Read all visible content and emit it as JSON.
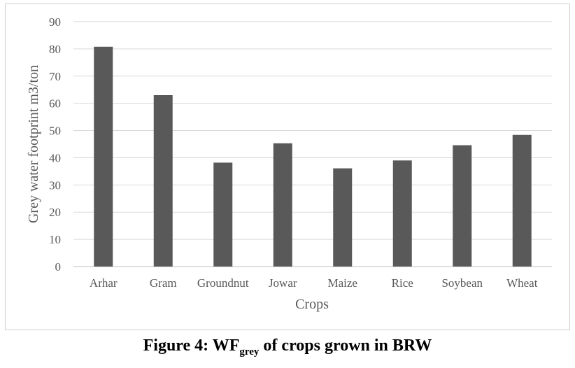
{
  "chart_data": {
    "type": "bar",
    "categories": [
      "Arhar",
      "Gram",
      "Groundnut",
      "Jowar",
      "Maize",
      "Rice",
      "Soybean",
      "Wheat"
    ],
    "values": [
      80.8,
      63.0,
      38.2,
      45.3,
      36.1,
      39.0,
      44.6,
      48.4
    ],
    "title": "",
    "xlabel": "Crops",
    "ylabel": "Grey water footprint m3/ton",
    "ylim": [
      0,
      90
    ],
    "yticks": [
      0,
      10,
      20,
      30,
      40,
      50,
      60,
      70,
      80,
      90
    ],
    "grid": true,
    "legend": "none",
    "bar_color": "#595959",
    "grid_color": "#d9d9d9"
  },
  "caption": {
    "prefix": "Figure 4: WF",
    "subscript": "grey",
    "suffix": " of crops grown in BRW"
  }
}
